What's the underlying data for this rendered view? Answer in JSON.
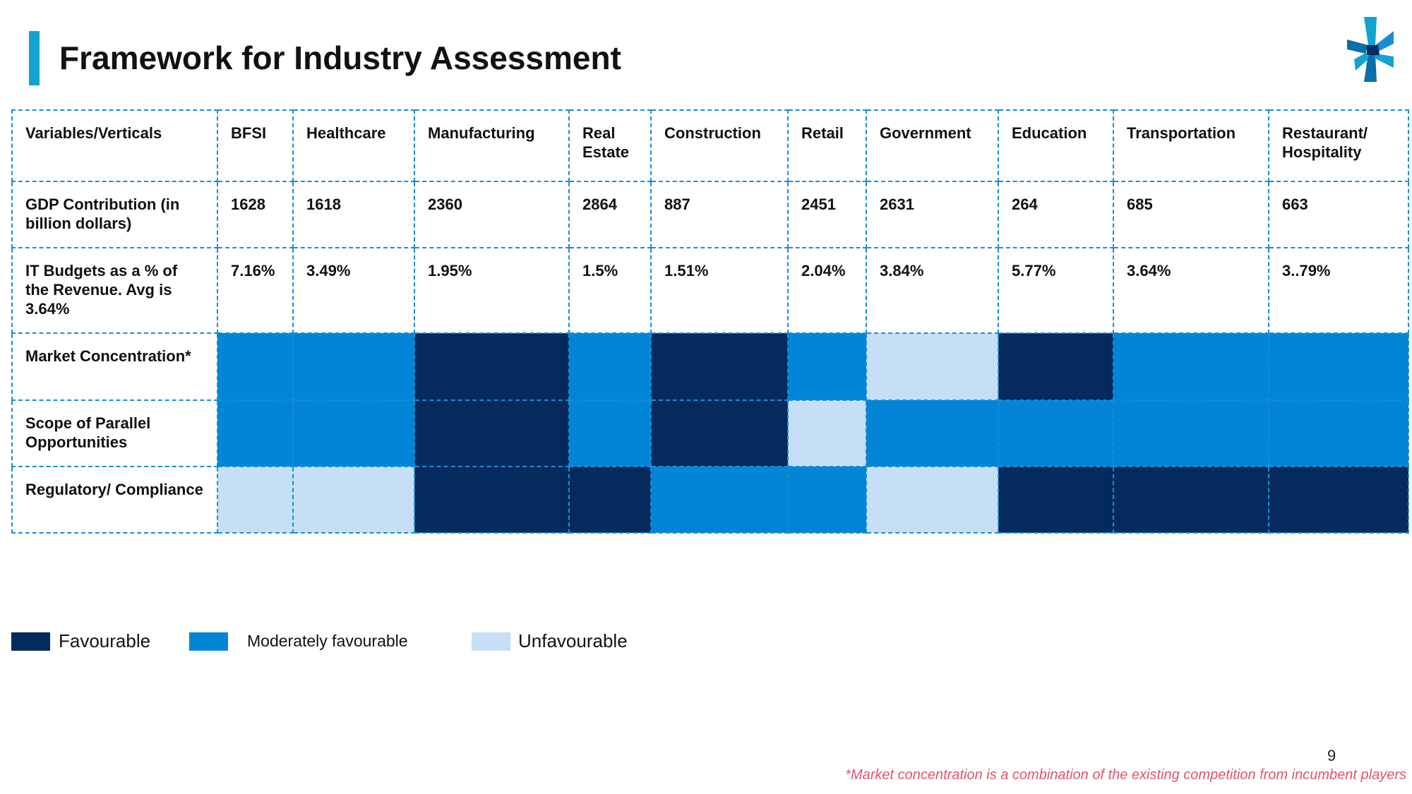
{
  "title": "Framework for Industry Assessment",
  "colors": {
    "accent": "#13a3d1",
    "favourable": "#042a5e",
    "moderately_favourable": "#0285d6",
    "unfavourable": "#c7dff6",
    "footnote": "#e3546b"
  },
  "table": {
    "corner_label": "Variables/Verticals",
    "columns": [
      "BFSI",
      "Healthcare",
      "Manufacturing",
      "Real Estate",
      "Construction",
      "Retail",
      "Government",
      "Education",
      "Transportation",
      "Restaurant/ Hospitality"
    ],
    "rows": [
      {
        "label": "GDP Contribution (in billion dollars)",
        "values": [
          "1628",
          "1618",
          "2360",
          "2864",
          "887",
          "2451",
          "2631",
          "264",
          "685",
          "663"
        ]
      },
      {
        "label": "IT Budgets as a % of the Revenue. Avg is 3.64%",
        "values": [
          "7.16%",
          "3.49%",
          "1.95%",
          "1.5%",
          "1.51%",
          "2.04%",
          "3.84%",
          "5.77%",
          "3.64%",
          "3..79%"
        ]
      },
      {
        "label": "Market Concentration*",
        "ratings": [
          "moderately_favourable",
          "moderately_favourable",
          "favourable",
          "moderately_favourable",
          "favourable",
          "moderately_favourable",
          "unfavourable",
          "favourable",
          "moderately_favourable",
          "moderately_favourable"
        ]
      },
      {
        "label": "Scope of Parallel Opportunities",
        "ratings": [
          "moderately_favourable",
          "moderately_favourable",
          "favourable",
          "moderately_favourable",
          "favourable",
          "unfavourable",
          "moderately_favourable",
          "moderately_favourable",
          "moderately_favourable",
          "moderately_favourable"
        ]
      },
      {
        "label": "Regulatory/ Compliance",
        "ratings": [
          "unfavourable",
          "unfavourable",
          "favourable",
          "favourable",
          "moderately_favourable",
          "moderately_favourable",
          "unfavourable",
          "favourable",
          "favourable",
          "favourable"
        ]
      }
    ]
  },
  "legend": [
    {
      "key": "favourable",
      "label": "Favourable"
    },
    {
      "key": "moderately_favourable",
      "label": "Moderately favourable"
    },
    {
      "key": "unfavourable",
      "label": "Unfavourable"
    }
  ],
  "page_number": "9",
  "footnote": "*Market concentration is a combination of the existing competition from incumbent players"
}
